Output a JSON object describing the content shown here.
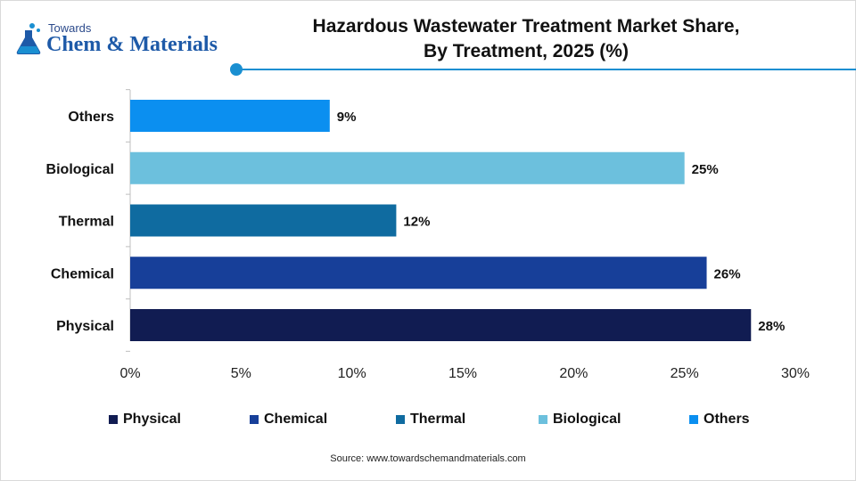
{
  "brand": {
    "top_text": "Towards",
    "name": "Chem & Materials",
    "accent": "#1a8fd1"
  },
  "header": {
    "title_line1": "Hazardous Wastewater Treatment Market Share,",
    "title_line2": "By Treatment, 2025 (%)"
  },
  "chart_data": {
    "type": "bar",
    "orientation": "horizontal",
    "title": "Hazardous Wastewater Treatment Market Share, By Treatment, 2025 (%)",
    "categories": [
      "Others",
      "Biological",
      "Thermal",
      "Chemical",
      "Physical"
    ],
    "values": [
      9,
      25,
      12,
      26,
      28
    ],
    "data_labels": [
      "9%",
      "25%",
      "12%",
      "26%",
      "28%"
    ],
    "colors": [
      "#0b8ff0",
      "#6cc0dd",
      "#0f6ba0",
      "#173f99",
      "#111c52"
    ],
    "x_ticks": [
      "0%",
      "5%",
      "10%",
      "15%",
      "20%",
      "25%",
      "30%"
    ],
    "xlim": [
      0,
      30
    ],
    "grid": false,
    "legend_position": "bottom",
    "legend": [
      {
        "label": "Physical",
        "color": "#111c52"
      },
      {
        "label": "Chemical",
        "color": "#173f99"
      },
      {
        "label": "Thermal",
        "color": "#0f6ba0"
      },
      {
        "label": "Biological",
        "color": "#6cc0dd"
      },
      {
        "label": "Others",
        "color": "#0b8ff0"
      }
    ]
  },
  "footer": {
    "source": "Source: www.towardschemandmaterials.com"
  }
}
